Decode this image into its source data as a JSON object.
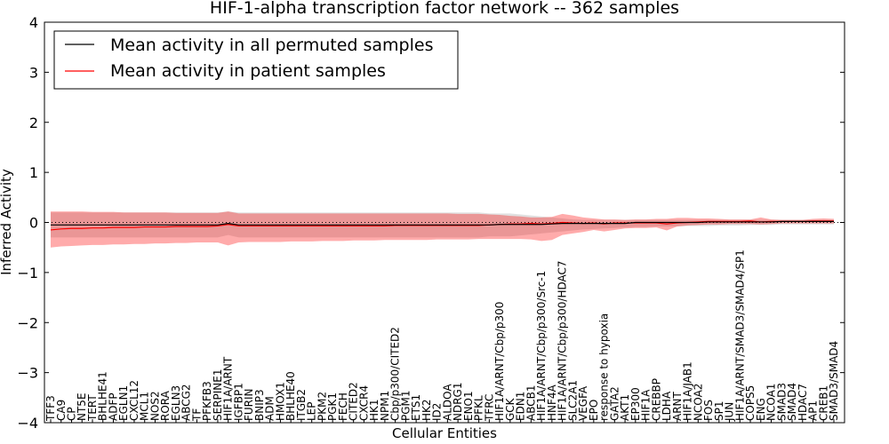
{
  "chart_data": {
    "type": "line",
    "title": "HIF-1-alpha transcription factor network -- 362 samples",
    "xlabel": "Cellular Entities",
    "ylabel": "Inferred Activity",
    "ylim": [
      -4,
      4
    ],
    "yticks": [
      "4",
      "3",
      "2",
      "1",
      "0",
      "−1",
      "−2",
      "−3",
      "−4"
    ],
    "ytick_values": [
      4,
      3,
      2,
      1,
      0,
      -1,
      -2,
      -3,
      -4
    ],
    "legend": {
      "placement": "top-left",
      "entries": [
        {
          "label": "Mean activity in all permuted samples",
          "color": "#000000"
        },
        {
          "label": "Mean activity in patient samples",
          "color": "#ff0000"
        }
      ]
    },
    "categories": [
      "TFF3",
      "CA9",
      "CP",
      "NT5E",
      "TERT",
      "BHLHE41",
      "ADFP",
      "EGLN1",
      "CXCL12",
      "MCL1",
      "NOS2",
      "RORA",
      "EGLN3",
      "ABCG2",
      "TF",
      "PFKFB3",
      "SERPINE1",
      "HIF1A/ARNT",
      "IGFBP1",
      "FURIN",
      "BNIP3",
      "ADM",
      "HMOX1",
      "BHLHE40",
      "ITGB2",
      "LEP",
      "PKM2",
      "PGK1",
      "FECH",
      "CITED2",
      "CXCR4",
      "HK1",
      "NPM1",
      "Cbp/p300/CITED2",
      "PGM1",
      "ETS1",
      "HK2",
      "ID2",
      "ALDOA",
      "NDRG1",
      "ENO1",
      "PFKL",
      "TFRC",
      "HIF1A/ARNT/Cbp/p300",
      "GCK",
      "EDN1",
      "ABCB1",
      "HIF1A/ARNT/Cbp/p300/Src-1",
      "HNF4A",
      "HIF1A/ARNT/Cbp/p300/HDAC7",
      "SLC2A1",
      "VEGFA",
      "EPO",
      "response to hypoxia",
      "GATA2",
      "AKT1",
      "EP300",
      "HIF1A",
      "CREBBP",
      "LDHA",
      "ARNT",
      "HIF1A/JAB1",
      "NCOA2",
      "FOS",
      "SP1",
      "JUN",
      "HIF1A/ARNT/SMAD3/SMAD4/SP1",
      "COPS5",
      "ENG",
      "NCOA1",
      "SMAD3",
      "SMAD4",
      "HDAC7",
      "AP1",
      "CREB1",
      "SMAD3/SMAD4"
    ],
    "series": [
      {
        "name": "Mean activity in all permuted samples",
        "color": "#000000",
        "values": [
          -0.05,
          -0.05,
          -0.05,
          -0.05,
          -0.05,
          -0.05,
          -0.05,
          -0.05,
          -0.05,
          -0.05,
          -0.05,
          -0.05,
          -0.05,
          -0.05,
          -0.05,
          -0.05,
          -0.05,
          -0.02,
          -0.05,
          -0.05,
          -0.05,
          -0.05,
          -0.05,
          -0.05,
          -0.05,
          -0.05,
          -0.05,
          -0.05,
          -0.05,
          -0.05,
          -0.05,
          -0.05,
          -0.05,
          -0.05,
          -0.05,
          -0.05,
          -0.05,
          -0.05,
          -0.05,
          -0.05,
          -0.05,
          -0.05,
          -0.05,
          -0.04,
          -0.04,
          -0.04,
          -0.04,
          -0.04,
          -0.03,
          -0.02,
          -0.02,
          -0.02,
          -0.02,
          -0.02,
          -0.02,
          -0.02,
          0.0,
          0.0,
          0.0,
          0.0,
          0.0,
          0.0,
          0.0,
          0.01,
          0.01,
          0.01,
          0.01,
          0.01,
          0.01,
          0.01,
          0.02,
          0.02,
          0.02,
          0.02,
          0.02,
          0.02
        ],
        "band_low": [
          -0.3,
          -0.3,
          -0.3,
          -0.3,
          -0.3,
          -0.3,
          -0.3,
          -0.3,
          -0.3,
          -0.3,
          -0.3,
          -0.3,
          -0.3,
          -0.3,
          -0.3,
          -0.3,
          -0.3,
          -0.25,
          -0.3,
          -0.3,
          -0.3,
          -0.3,
          -0.3,
          -0.3,
          -0.3,
          -0.3,
          -0.3,
          -0.3,
          -0.3,
          -0.3,
          -0.3,
          -0.3,
          -0.3,
          -0.3,
          -0.3,
          -0.3,
          -0.3,
          -0.3,
          -0.3,
          -0.3,
          -0.3,
          -0.3,
          -0.28,
          -0.28,
          -0.28,
          -0.26,
          -0.24,
          -0.22,
          -0.2,
          -0.18,
          -0.16,
          -0.14,
          -0.13,
          -0.12,
          -0.11,
          -0.1,
          -0.09,
          -0.09,
          -0.08,
          -0.08,
          -0.08,
          -0.07,
          -0.07,
          -0.07,
          -0.06,
          -0.06,
          -0.06,
          -0.05,
          -0.05,
          -0.05,
          -0.04,
          -0.04,
          -0.04,
          -0.04,
          -0.04,
          -0.04
        ],
        "band_high": [
          0.2,
          0.2,
          0.2,
          0.2,
          0.2,
          0.2,
          0.2,
          0.2,
          0.2,
          0.2,
          0.2,
          0.2,
          0.2,
          0.2,
          0.2,
          0.2,
          0.2,
          0.22,
          0.2,
          0.2,
          0.2,
          0.2,
          0.2,
          0.2,
          0.2,
          0.2,
          0.2,
          0.2,
          0.2,
          0.2,
          0.2,
          0.2,
          0.2,
          0.2,
          0.2,
          0.2,
          0.2,
          0.2,
          0.2,
          0.2,
          0.2,
          0.2,
          0.18,
          0.18,
          0.18,
          0.16,
          0.14,
          0.12,
          0.1,
          0.08,
          0.06,
          0.05,
          0.05,
          0.05,
          0.05,
          0.05,
          0.05,
          0.05,
          0.05,
          0.05,
          0.05,
          0.05,
          0.05,
          0.05,
          0.05,
          0.05,
          0.05,
          0.05,
          0.05,
          0.05,
          0.05,
          0.05,
          0.05,
          0.05,
          0.05,
          0.05
        ]
      },
      {
        "name": "Mean activity in patient samples",
        "color": "#ff0000",
        "values": [
          -0.15,
          -0.13,
          -0.12,
          -0.12,
          -0.11,
          -0.11,
          -0.1,
          -0.1,
          -0.1,
          -0.09,
          -0.09,
          -0.09,
          -0.08,
          -0.08,
          -0.08,
          -0.08,
          -0.07,
          -0.04,
          -0.07,
          -0.07,
          -0.07,
          -0.07,
          -0.07,
          -0.07,
          -0.07,
          -0.07,
          -0.07,
          -0.07,
          -0.07,
          -0.07,
          -0.07,
          -0.07,
          -0.07,
          -0.06,
          -0.06,
          -0.06,
          -0.06,
          -0.06,
          -0.06,
          -0.06,
          -0.06,
          -0.06,
          -0.05,
          -0.04,
          -0.03,
          -0.03,
          -0.02,
          -0.03,
          -0.02,
          0.0,
          -0.01,
          -0.02,
          -0.01,
          -0.03,
          -0.01,
          -0.01,
          -0.01,
          -0.01,
          -0.01,
          -0.03,
          -0.01,
          0.0,
          0.01,
          0.02,
          0.02,
          0.02,
          0.02,
          0.03,
          0.01,
          0.02,
          0.02,
          0.02,
          0.02,
          0.03,
          0.03,
          0.03
        ],
        "band_low": [
          -0.5,
          -0.48,
          -0.47,
          -0.46,
          -0.45,
          -0.45,
          -0.44,
          -0.44,
          -0.43,
          -0.43,
          -0.42,
          -0.42,
          -0.41,
          -0.41,
          -0.4,
          -0.4,
          -0.4,
          -0.46,
          -0.4,
          -0.39,
          -0.39,
          -0.39,
          -0.39,
          -0.38,
          -0.38,
          -0.38,
          -0.37,
          -0.37,
          -0.37,
          -0.36,
          -0.36,
          -0.36,
          -0.35,
          -0.35,
          -0.35,
          -0.35,
          -0.35,
          -0.34,
          -0.34,
          -0.34,
          -0.34,
          -0.33,
          -0.33,
          -0.33,
          -0.33,
          -0.33,
          -0.34,
          -0.37,
          -0.35,
          -0.25,
          -0.22,
          -0.19,
          -0.15,
          -0.18,
          -0.15,
          -0.12,
          -0.11,
          -0.11,
          -0.1,
          -0.16,
          -0.08,
          -0.06,
          -0.05,
          -0.04,
          -0.04,
          -0.03,
          -0.03,
          -0.03,
          -0.04,
          -0.03,
          -0.02,
          -0.02,
          -0.02,
          -0.02,
          -0.02,
          -0.02
        ],
        "band_high": [
          0.22,
          0.22,
          0.22,
          0.22,
          0.21,
          0.21,
          0.21,
          0.2,
          0.2,
          0.2,
          0.2,
          0.2,
          0.19,
          0.19,
          0.19,
          0.19,
          0.19,
          0.22,
          0.18,
          0.18,
          0.18,
          0.18,
          0.18,
          0.18,
          0.18,
          0.18,
          0.18,
          0.18,
          0.18,
          0.18,
          0.18,
          0.18,
          0.18,
          0.18,
          0.18,
          0.18,
          0.18,
          0.18,
          0.18,
          0.17,
          0.17,
          0.17,
          0.16,
          0.15,
          0.13,
          0.12,
          0.1,
          0.1,
          0.11,
          0.17,
          0.14,
          0.1,
          0.08,
          0.06,
          0.06,
          0.05,
          0.06,
          0.06,
          0.07,
          0.07,
          0.09,
          0.09,
          0.08,
          0.08,
          0.07,
          0.06,
          0.06,
          0.06,
          0.1,
          0.06,
          0.05,
          0.05,
          0.05,
          0.07,
          0.08,
          0.07
        ]
      }
    ]
  }
}
